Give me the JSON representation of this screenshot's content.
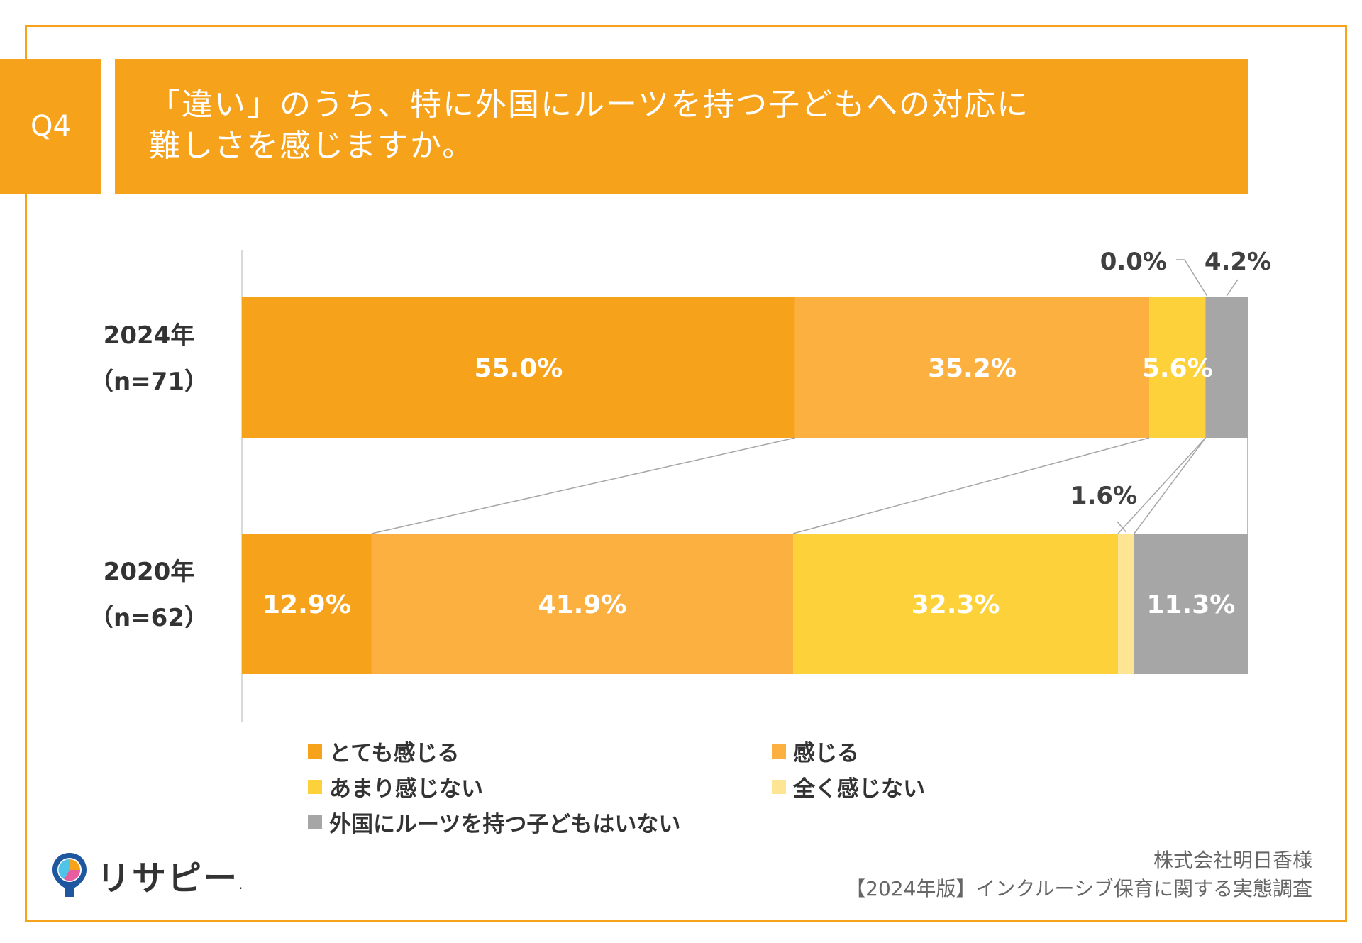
{
  "header": {
    "question_label": "Q4",
    "title_line1": "「違い」のうち、特に外国にルーツを持つ子どもへの対応に",
    "title_line2": "難しさを感じますか。"
  },
  "colors": {
    "accent": "#F7A21B",
    "series": [
      "#F7A21B",
      "#FBB040",
      "#FCD13A",
      "#FDE594",
      "#A6A6A6"
    ]
  },
  "chart_data": {
    "type": "bar",
    "orientation": "horizontal",
    "stacked": true,
    "categories": [
      {
        "year": "2024年",
        "n": "（n=71）"
      },
      {
        "year": "2020年",
        "n": "（n=62）"
      }
    ],
    "series": [
      {
        "name": "とても感じる",
        "values": [
          55.0,
          12.9
        ],
        "labels": [
          "55.0%",
          "12.9%"
        ]
      },
      {
        "name": "感じる",
        "values": [
          35.2,
          41.9
        ],
        "labels": [
          "35.2%",
          "41.9%"
        ]
      },
      {
        "name": "あまり感じない",
        "values": [
          5.6,
          32.3
        ],
        "labels": [
          "5.6%",
          "32.3%"
        ]
      },
      {
        "name": "全く感じない",
        "values": [
          0.0,
          1.6
        ],
        "labels": [
          "0.0%",
          "1.6%"
        ]
      },
      {
        "name": "外国にルーツを持つ子どもはいない",
        "values": [
          4.2,
          11.3
        ],
        "labels": [
          "4.2%",
          "11.3%"
        ]
      }
    ],
    "xlim": [
      0,
      100
    ]
  },
  "footer": {
    "company": "株式会社明日香様",
    "survey": "【2024年版】インクルーシブ保育に関する実態調査"
  },
  "logo": {
    "text": "リサピー",
    "mark": "."
  }
}
